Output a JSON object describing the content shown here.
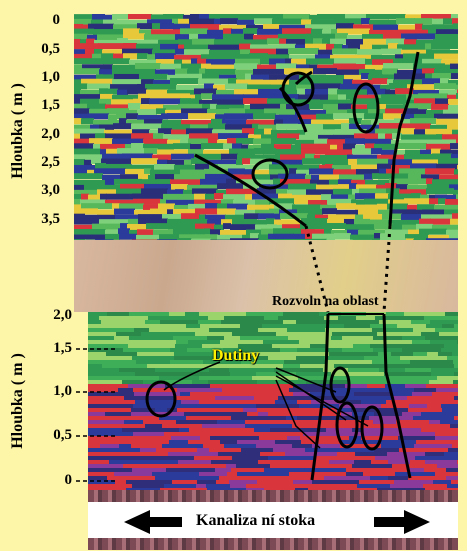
{
  "top_axis": {
    "label": "Hloubka ( m )",
    "ticks": [
      "0",
      "0,5",
      "1,0",
      "1,5",
      "2,0",
      "2,5",
      "3,0",
      "3,5"
    ]
  },
  "bottom_axis": {
    "label": "Hloubka ( m )",
    "ticks": [
      "2,0",
      "1,5",
      "1,0",
      "0,5",
      "0"
    ]
  },
  "annotations": {
    "zone": "Rozvoln na oblast",
    "cavities": "Dutiny",
    "sewer": "Kanaliza ní stoka"
  },
  "colors": {
    "background": "#fdf5a8",
    "radar_green": "#2e9a52",
    "radar_red": "#d8353c",
    "radar_blue": "#2a3b9c",
    "outline": "#000000"
  },
  "icons": {
    "arrow_left": "arrow-left-icon",
    "arrow_right": "arrow-right-icon"
  }
}
